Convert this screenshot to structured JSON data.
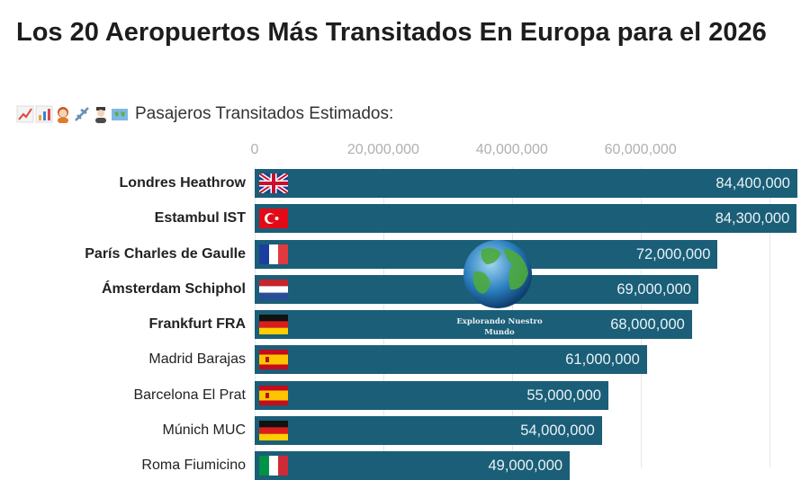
{
  "title": "Los 20 Aeropuertos Más Transitados En Europa para el 2026",
  "subtitle": {
    "icons": [
      "chart-increasing-icon",
      "bar-chart-icon",
      "woman-icon",
      "airplane-icon",
      "pilot-icon",
      "world-map-icon"
    ],
    "text": "Pasajeros Transitados Estimados:"
  },
  "watermark": {
    "text": "Explorando Nuestro Mundo",
    "icon": "globe-icon"
  },
  "colors": {
    "bar": "#1b5e78",
    "value_text": "#e9f2f5",
    "tick": "#b0b0b0"
  },
  "chart_data": {
    "type": "bar",
    "orientation": "horizontal",
    "grid": true,
    "xlim": [
      0,
      85000000
    ],
    "xticks": [
      "0",
      "20,000,000",
      "40,000,000",
      "60,000,000"
    ],
    "xtick_values": [
      0,
      20000000,
      40000000,
      60000000
    ],
    "categories": [
      {
        "name": "Londres Heathrow",
        "flag": "uk",
        "bold": true,
        "value": 84400000,
        "label": "84,400,000"
      },
      {
        "name": "Estambul IST",
        "flag": "tr",
        "bold": true,
        "value": 84300000,
        "label": "84,300,000"
      },
      {
        "name": "París Charles de Gaulle",
        "flag": "fr",
        "bold": true,
        "value": 72000000,
        "label": "72,000,000"
      },
      {
        "name": "Ámsterdam Schiphol",
        "flag": "nl",
        "bold": true,
        "value": 69000000,
        "label": "69,000,000"
      },
      {
        "name": "Frankfurt FRA",
        "flag": "de",
        "bold": true,
        "value": 68000000,
        "label": "68,000,000"
      },
      {
        "name": "Madrid Barajas",
        "flag": "es",
        "bold": false,
        "value": 61000000,
        "label": "61,000,000"
      },
      {
        "name": "Barcelona El Prat",
        "flag": "es",
        "bold": false,
        "value": 55000000,
        "label": "55,000,000"
      },
      {
        "name": "Múnich MUC",
        "flag": "de",
        "bold": false,
        "value": 54000000,
        "label": "54,000,000"
      },
      {
        "name": "Roma Fiumicino",
        "flag": "it",
        "bold": false,
        "value": 49000000,
        "label": "49,000,000"
      }
    ]
  }
}
